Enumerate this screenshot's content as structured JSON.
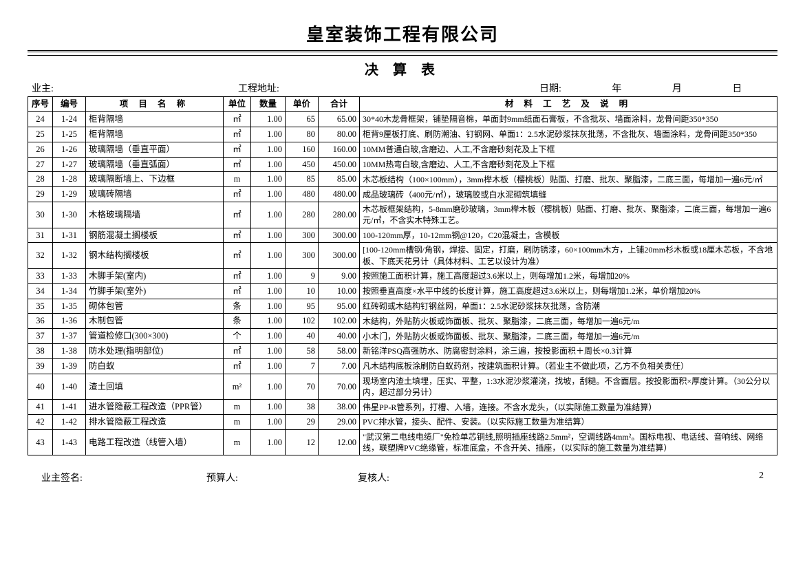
{
  "company_title": "皇室装饰工程有限公司",
  "table_title": "决 算  表",
  "info": {
    "owner_label": "业主:",
    "addr_label": "工程地址:",
    "date_label": "日期:",
    "year_label": "年",
    "month_label": "月",
    "day_label": "日"
  },
  "headers": {
    "seq": "序号",
    "code": "编号",
    "name": "项 目 名 称",
    "unit": "单位",
    "qty": "数量",
    "price": "单价",
    "total": "合计",
    "desc": "材 料 工 艺 及 说 明"
  },
  "rows": [
    {
      "seq": "24",
      "code": "1-24",
      "name": "柜背隔墙",
      "unit": "㎡",
      "qty": "1.00",
      "price": "65",
      "total": "65.00",
      "desc": "30*40木龙骨框架，铺垫隔音棉，单面封9mm纸面石膏板，不含批灰、墙面涂料，龙骨间距350*350"
    },
    {
      "seq": "25",
      "code": "1-25",
      "name": "柜背隔墙",
      "unit": "㎡",
      "qty": "1.00",
      "price": "80",
      "total": "80.00",
      "desc": "柜背9厘板打底、刷防潮油、钉钢网、单面1：2.5水泥砂浆抹灰批荡，不含批灰、墙面涂料，龙骨间距350*350"
    },
    {
      "seq": "26",
      "code": "1-26",
      "name": "玻璃隔墙（垂直平面）",
      "unit": "㎡",
      "qty": "1.00",
      "price": "160",
      "total": "160.00",
      "desc": "10MM普通白玻,含磨边、人工,不含磨砂刻花及上下框"
    },
    {
      "seq": "27",
      "code": "1-27",
      "name": "玻璃隔墙（垂直弧面）",
      "unit": "㎡",
      "qty": "1.00",
      "price": "450",
      "total": "450.00",
      "desc": "10MM热弯白玻,含磨边、人工,不含磨砂刻花及上下框"
    },
    {
      "seq": "28",
      "code": "1-28",
      "name": "玻璃隔断墙上、下边框",
      "unit": "m",
      "qty": "1.00",
      "price": "85",
      "total": "85.00",
      "desc": "木芯板结构（100×100mm），3mm榉木板（樱桃板）贴面、打磨、批灰、聚脂漆，二底三面，每增加一遍6元/㎡"
    },
    {
      "seq": "29",
      "code": "1-29",
      "name": "玻璃砖隔墙",
      "unit": "㎡",
      "qty": "1.00",
      "price": "480",
      "total": "480.00",
      "desc": "成品玻璃砖（400元/㎡），玻璃胶或白水泥砌筑填缝"
    },
    {
      "seq": "30",
      "code": "1-30",
      "name": "木格玻璃隔墙",
      "unit": "㎡",
      "qty": "1.00",
      "price": "280",
      "total": "280.00",
      "desc": "木芯板框架结构，5-8mm磨砂玻璃，3mm榉木板（樱桃板）贴面、打磨、批灰、聚脂漆，二底三面，每增加一遍6元/㎡，不含实木特殊工艺。"
    },
    {
      "seq": "31",
      "code": "1-31",
      "name": "钢筋混凝土搁楼板",
      "unit": "㎡",
      "qty": "1.00",
      "price": "300",
      "total": "300.00",
      "desc": "100-120mm厚，10-12mm钢@120，C20混凝土，含模板"
    },
    {
      "seq": "32",
      "code": "1-32",
      "name": "钢木结构搁楼板",
      "unit": "㎡",
      "qty": "1.00",
      "price": "300",
      "total": "300.00",
      "desc": "[100-120mm槽钢/角钢，焊接、固定，打磨，刷防锈漆，60×100mm木方，上铺20mm杉木板或18厘木芯板，不含地板、下底天花另计（具体材料、工艺以设计为准）"
    },
    {
      "seq": "33",
      "code": "1-33",
      "name": "木脚手架(室内)",
      "unit": "㎡",
      "qty": "1.00",
      "price": "9",
      "total": "9.00",
      "desc": "按照施工面积计算，施工高度超过3.6米以上，则每增加1.2米，每增加20%"
    },
    {
      "seq": "34",
      "code": "1-34",
      "name": "竹脚手架(室外)",
      "unit": "㎡",
      "qty": "1.00",
      "price": "10",
      "total": "10.00",
      "desc": "按照垂直高度×水平中线的长度计算，施工高度超过3.6米以上，则每增加1.2米，单价增加20%"
    },
    {
      "seq": "35",
      "code": "1-35",
      "name": "砌体包管",
      "unit": "条",
      "qty": "1.00",
      "price": "95",
      "total": "95.00",
      "desc": "红砖砌或木结构钉钢丝网，单面1：2.5水泥砂浆抹灰批荡，含防潮"
    },
    {
      "seq": "36",
      "code": "1-36",
      "name": "木制包管",
      "unit": "条",
      "qty": "1.00",
      "price": "102",
      "total": "102.00",
      "desc": "木结构，外贴防火板或饰面板、批灰、聚脂漆，二底三面，每增加一遍6元/m"
    },
    {
      "seq": "37",
      "code": "1-37",
      "name": "管道检修口(300×300)",
      "unit": "个",
      "qty": "1.00",
      "price": "40",
      "total": "40.00",
      "desc": "小木门，外贴防火板或饰面板、批灰、聚脂漆，二底三面，每增加一遍6元/m"
    },
    {
      "seq": "38",
      "code": "1-38",
      "name": "防水处理(指明部位)",
      "unit": "㎡",
      "qty": "1.00",
      "price": "58",
      "total": "58.00",
      "desc": "新铭洋PSQ高强防水、防腐密封涂料，涂三遍，按投影面积＋周长×0.3计算"
    },
    {
      "seq": "39",
      "code": "1-39",
      "name": "防白蚁",
      "unit": "㎡",
      "qty": "1.00",
      "price": "7",
      "total": "7.00",
      "desc": "凡木结构底板涂刷防白蚁药剂，按建筑面积计算。（若业主不做此项，乙方不负相关责任）"
    },
    {
      "seq": "40",
      "code": "1-40",
      "name": "渣土回填",
      "unit": "m²",
      "qty": "1.00",
      "price": "70",
      "total": "70.00",
      "desc": "现场室内渣土填埋，压实、平整，1:3水泥沙浆灌浇，找坡，刮糙。不含面层。按投影面积×厚度计算。（30公分以内，超过部分另计）"
    },
    {
      "seq": "41",
      "code": "1-41",
      "name": "进水管隐蔽工程改造（PPR管）",
      "unit": "m",
      "qty": "1.00",
      "price": "38",
      "total": "38.00",
      "desc": "伟星PP-R管系列，打槽、入墙，连接。不含水龙头，（以实际施工数量为准结算）"
    },
    {
      "seq": "42",
      "code": "1-42",
      "name": "排水管隐蔽工程改造",
      "unit": "m",
      "qty": "1.00",
      "price": "29",
      "total": "29.00",
      "desc": "PVC排水管，接头、配件、安装。（以实际施工数量为准结算）"
    },
    {
      "seq": "43",
      "code": "1-43",
      "name": "电路工程改造（线管入墙）",
      "unit": "m",
      "qty": "1.00",
      "price": "12",
      "total": "12.00",
      "desc": "\"武汉第二电线电缆厂\"免检单芯铜线,照明插座线路2.5mm²，空调线路4mm²。国标电视、电话线、音响线、网络线，联塑牌PVC绝缘管，标准底盒，不含开关、插座，（以实际的施工数量为准结算）"
    }
  ],
  "footer": {
    "owner_sign": "业主签名:",
    "budget_person": "预算人:",
    "reviewer": "复核人:",
    "page": "2"
  }
}
